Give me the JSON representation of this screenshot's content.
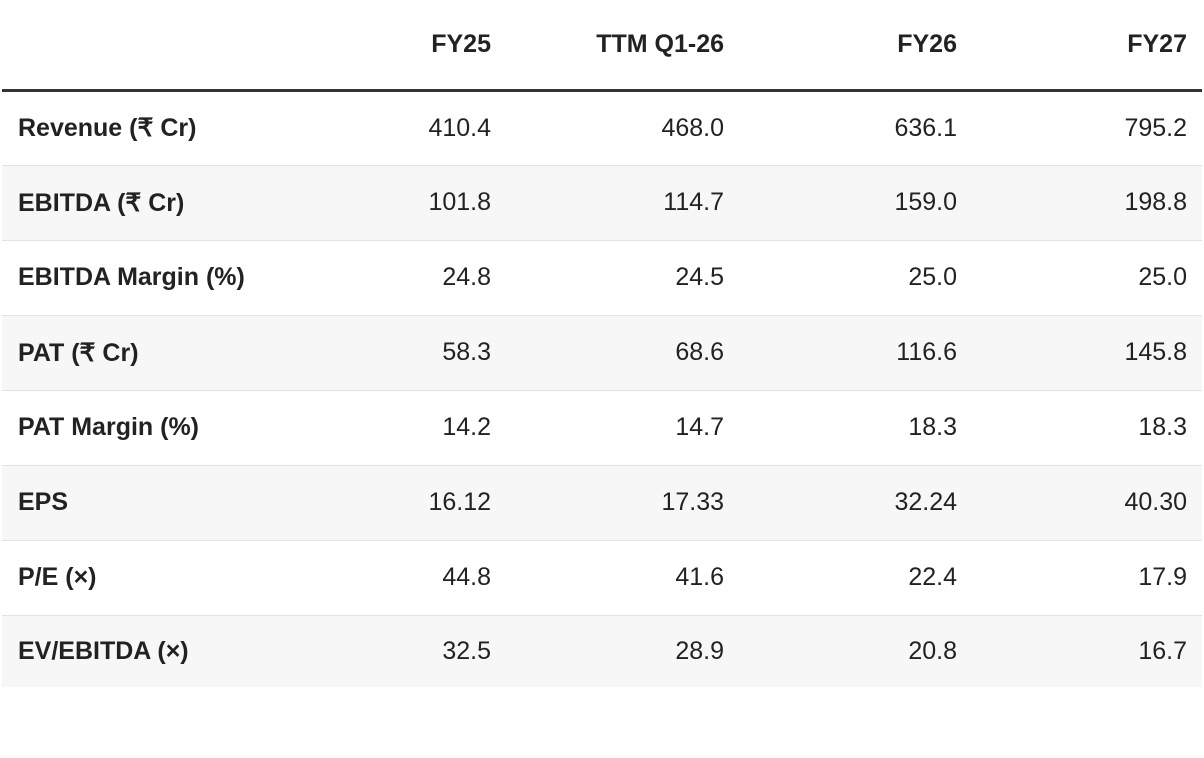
{
  "table": {
    "columns": [
      "FY25",
      "TTM Q1-26",
      "FY26",
      "FY27"
    ],
    "rows": [
      [
        "Revenue (₹ Cr)",
        "410.4",
        "468.0",
        "636.1",
        "795.2"
      ],
      [
        "EBITDA (₹ Cr)",
        "101.8",
        "114.7",
        "159.0",
        "198.8"
      ],
      [
        "EBITDA Margin (%)",
        "24.8",
        "24.5",
        "25.0",
        "25.0"
      ],
      [
        "PAT (₹ Cr)",
        "58.3",
        "68.6",
        "116.6",
        "145.8"
      ],
      [
        "PAT Margin (%)",
        "14.2",
        "14.7",
        "18.3",
        "18.3"
      ],
      [
        "EPS",
        "16.12",
        "17.33",
        "32.24",
        "40.30"
      ],
      [
        "P/E (×)",
        "44.8",
        "41.6",
        "22.4",
        "17.9"
      ],
      [
        "EV/EBITDA (×)",
        "32.5",
        "28.9",
        "20.8",
        "16.7"
      ]
    ]
  }
}
